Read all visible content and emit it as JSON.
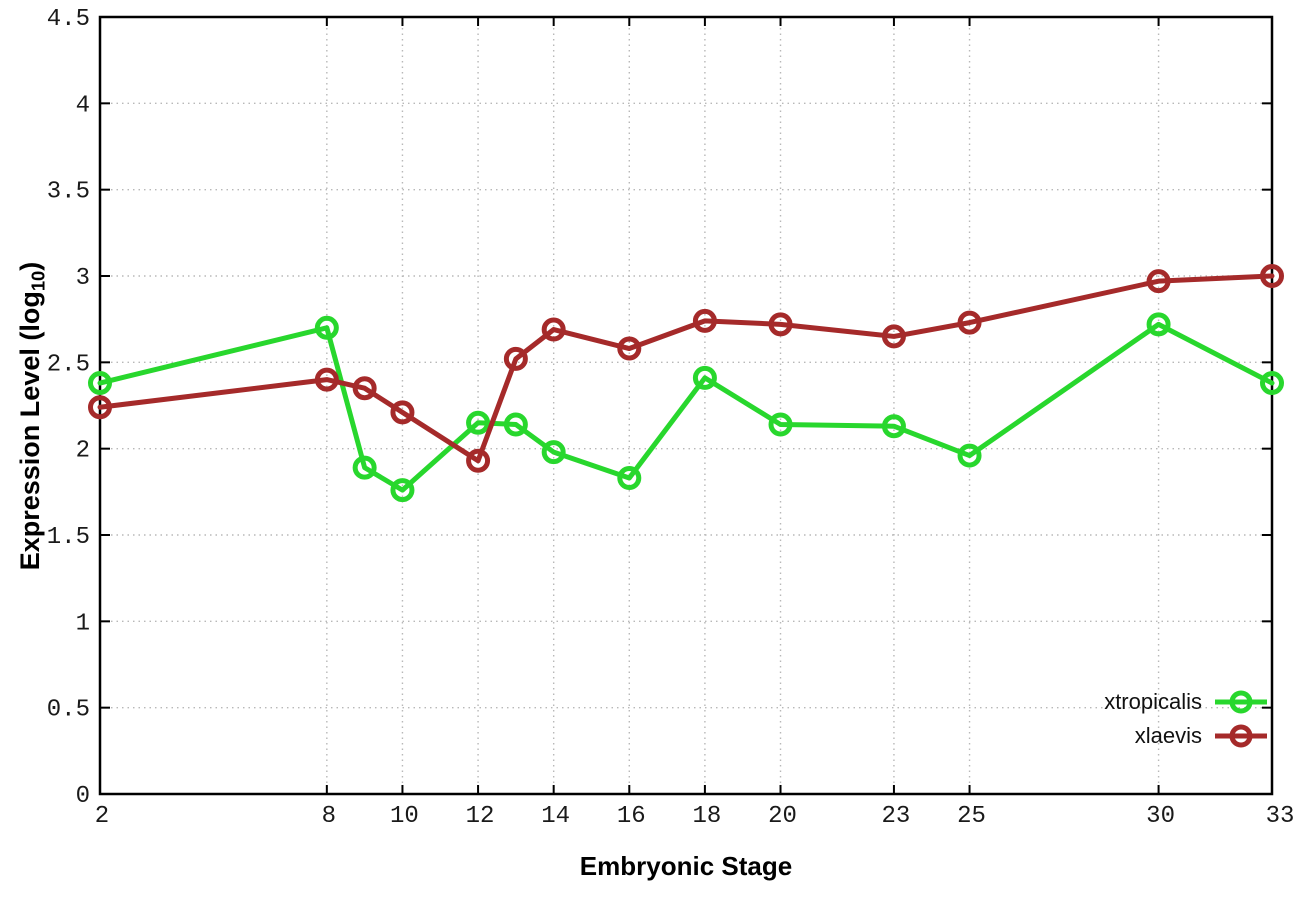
{
  "chart_data": {
    "type": "line",
    "title": "",
    "xlabel": "Embryonic Stage",
    "ylabel": "Expression Level (log10)",
    "ylabel_parts": {
      "prefix": "Expression Level (log",
      "sub": "10",
      "suffix": ")"
    },
    "x": [
      2,
      8,
      9,
      10,
      12,
      13,
      14,
      16,
      18,
      20,
      23,
      25,
      30,
      33
    ],
    "xticks": [
      2,
      8,
      10,
      12,
      14,
      16,
      18,
      20,
      23,
      25,
      30,
      33
    ],
    "yticks": [
      0,
      0.5,
      1,
      1.5,
      2,
      2.5,
      3,
      3.5,
      4,
      4.5
    ],
    "xlim": [
      2,
      33
    ],
    "ylim": [
      0,
      4.5
    ],
    "grid": true,
    "grid_style": "dotted",
    "marker": "open-circle",
    "legend_position": "inside-bottom-right",
    "series": [
      {
        "name": "xtropicalis",
        "color": "#28d72d",
        "values": [
          2.38,
          2.7,
          1.89,
          1.76,
          2.15,
          2.14,
          1.98,
          1.83,
          2.41,
          2.14,
          2.13,
          1.96,
          2.72,
          2.38
        ]
      },
      {
        "name": "xlaevis",
        "color": "#a52a2a",
        "values": [
          2.24,
          2.4,
          2.35,
          2.21,
          1.93,
          2.52,
          2.69,
          2.58,
          2.74,
          2.72,
          2.65,
          2.73,
          2.97,
          3.0
        ]
      }
    ],
    "axis_color": "#000000",
    "grid_color": "#b8b8b8",
    "tick_label_color": "#1a1a1a",
    "background": "#ffffff"
  }
}
